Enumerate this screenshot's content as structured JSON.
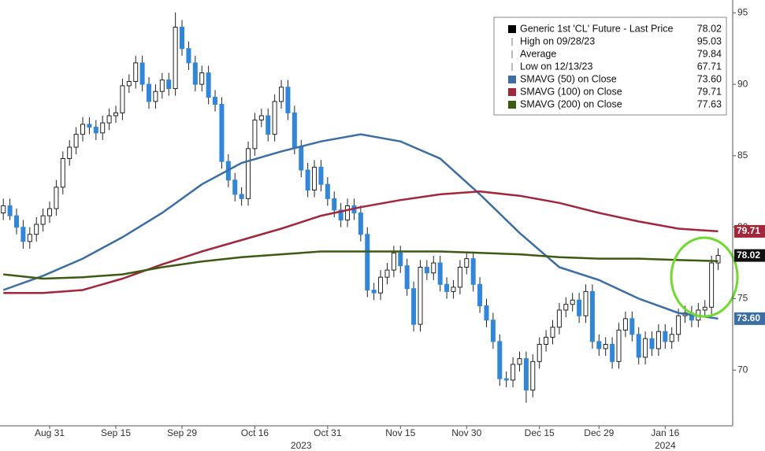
{
  "chart_data": {
    "type": "candlestick",
    "up_color": "#ffffff",
    "down_color": "#2e86de",
    "edge_color": "#222222",
    "xlim": [
      -0.5,
      110.2
    ],
    "ylim": [
      66.1,
      95.9
    ],
    "yticks": [
      70,
      75,
      80,
      85,
      90,
      95
    ],
    "xticks": [
      {
        "value": 7,
        "label": "Aug 31"
      },
      {
        "value": 17,
        "label": "Sep 15"
      },
      {
        "value": 27,
        "label": "Sep 29"
      },
      {
        "value": 38,
        "label": "Oct 16"
      },
      {
        "value": 49,
        "label": "Oct 31"
      },
      {
        "value": 60,
        "label": "Nov 15"
      },
      {
        "value": 70,
        "label": "Nov 30"
      },
      {
        "value": 81,
        "label": "Dec 15"
      },
      {
        "value": 90,
        "label": "Dec 29"
      },
      {
        "value": 100,
        "label": "Jan 16"
      }
    ],
    "year_labels": [
      {
        "value": 45,
        "label": "2023"
      },
      {
        "value": 100,
        "label": "2024"
      }
    ],
    "candles": {
      "open": [
        81.0,
        81.5,
        80.8,
        80.0,
        79.0,
        79.5,
        80.2,
        80.8,
        81.3,
        82.8,
        84.8,
        85.6,
        86.5,
        87.2,
        87.0,
        86.6,
        87.3,
        87.8,
        88.0,
        89.9,
        90.2,
        91.5,
        90.0,
        88.8,
        89.5,
        90.3,
        89.7,
        94.0,
        92.5,
        91.5,
        90.0,
        90.8,
        89.1,
        88.6,
        84.6,
        83.3,
        82.3,
        82.0,
        85.5,
        87.5,
        87.8,
        86.5,
        88.8,
        89.8,
        88.0,
        85.6,
        84.0,
        82.6,
        84.2,
        83.0,
        82.0,
        81.2,
        80.5,
        81.5,
        81.0,
        79.5,
        75.6,
        75.4,
        76.5,
        77.0,
        78.2,
        77.3,
        75.7,
        73.2,
        77.2,
        76.8,
        77.5,
        76.0,
        75.5,
        75.8,
        77.2,
        77.8,
        76.0,
        74.5,
        73.5,
        72.0,
        69.4,
        69.3,
        70.4,
        70.8,
        68.6,
        70.6,
        71.8,
        72.3,
        73.0,
        74.2,
        74.6,
        74.9,
        73.8,
        75.5,
        72.0,
        71.5,
        71.8,
        70.6,
        72.8,
        73.6,
        72.5,
        70.9,
        72.2,
        71.5,
        72.7,
        72.0,
        72.5,
        73.8,
        74.0,
        73.5,
        74.2,
        74.4,
        77.5
      ],
      "high": [
        82.0,
        82.0,
        81.3,
        80.5,
        80.0,
        80.7,
        81.3,
        81.8,
        83.3,
        85.3,
        86.1,
        87.0,
        87.7,
        87.7,
        87.5,
        87.8,
        88.3,
        88.5,
        90.4,
        90.7,
        92.0,
        92.0,
        90.5,
        90.0,
        90.8,
        90.8,
        95.03,
        94.5,
        93.0,
        92.0,
        91.3,
        91.3,
        89.6,
        89.1,
        85.1,
        83.8,
        82.8,
        86.0,
        88.0,
        88.3,
        88.3,
        89.3,
        90.3,
        90.3,
        88.5,
        86.1,
        84.5,
        84.7,
        84.7,
        83.5,
        82.5,
        81.7,
        82.0,
        82.0,
        81.5,
        80.0,
        76.1,
        77.0,
        77.5,
        78.7,
        78.7,
        77.8,
        76.2,
        77.7,
        77.7,
        78.0,
        78.0,
        76.5,
        76.3,
        77.7,
        78.3,
        78.3,
        76.5,
        75.0,
        74.0,
        72.5,
        69.9,
        70.9,
        71.3,
        71.3,
        71.1,
        72.3,
        72.8,
        73.5,
        74.7,
        75.1,
        75.4,
        75.4,
        76.0,
        76.0,
        72.5,
        72.3,
        72.3,
        73.3,
        74.1,
        74.1,
        73.0,
        72.7,
        72.7,
        73.2,
        73.2,
        73.0,
        74.3,
        74.5,
        74.5,
        74.7,
        74.9,
        78.0,
        78.52
      ],
      "low": [
        80.5,
        80.5,
        79.5,
        78.5,
        78.5,
        79.0,
        79.7,
        80.3,
        80.8,
        82.3,
        84.3,
        85.1,
        86.0,
        86.5,
        86.1,
        86.1,
        86.8,
        87.3,
        87.5,
        89.4,
        89.7,
        89.5,
        88.3,
        88.3,
        89.0,
        89.2,
        89.2,
        92.0,
        91.0,
        89.5,
        89.5,
        88.6,
        88.1,
        84.1,
        82.8,
        81.8,
        81.5,
        81.5,
        85.0,
        87.0,
        86.0,
        86.0,
        88.3,
        87.5,
        85.1,
        83.5,
        82.1,
        82.1,
        82.5,
        81.5,
        80.7,
        80.0,
        80.0,
        80.5,
        79.0,
        75.1,
        74.9,
        74.9,
        76.0,
        76.5,
        76.8,
        75.2,
        72.7,
        72.7,
        76.3,
        76.3,
        75.5,
        75.0,
        75.0,
        75.3,
        76.7,
        75.5,
        74.0,
        73.0,
        71.5,
        68.9,
        68.8,
        68.8,
        69.9,
        67.71,
        68.1,
        70.1,
        71.3,
        71.8,
        72.5,
        73.7,
        74.1,
        73.3,
        73.3,
        71.5,
        71.0,
        71.0,
        70.1,
        70.1,
        72.3,
        72.0,
        70.4,
        70.4,
        71.0,
        71.0,
        71.5,
        71.5,
        72.0,
        73.3,
        73.0,
        73.0,
        73.7,
        73.9,
        77.0
      ],
      "close": [
        81.5,
        80.8,
        80.0,
        79.0,
        79.5,
        80.2,
        80.8,
        81.3,
        82.8,
        84.8,
        85.6,
        86.5,
        87.2,
        87.0,
        86.6,
        87.3,
        87.8,
        88.0,
        89.9,
        90.2,
        91.5,
        90.0,
        88.8,
        89.5,
        90.3,
        89.7,
        94.0,
        92.5,
        91.5,
        90.0,
        90.8,
        89.1,
        88.6,
        84.6,
        83.3,
        82.3,
        82.0,
        85.5,
        87.5,
        87.8,
        86.5,
        88.8,
        89.8,
        88.0,
        85.6,
        84.0,
        82.6,
        84.2,
        83.0,
        82.0,
        81.2,
        80.5,
        81.5,
        81.0,
        79.5,
        75.6,
        75.4,
        76.5,
        77.0,
        78.2,
        77.3,
        75.7,
        73.2,
        77.2,
        76.8,
        77.5,
        76.0,
        75.5,
        75.8,
        77.2,
        77.8,
        76.0,
        74.5,
        73.5,
        72.0,
        69.4,
        69.3,
        70.4,
        70.8,
        68.6,
        70.6,
        71.8,
        72.3,
        73.0,
        74.2,
        74.6,
        74.9,
        73.8,
        75.5,
        72.0,
        71.5,
        71.8,
        70.6,
        72.8,
        73.6,
        72.5,
        70.9,
        72.2,
        71.5,
        72.7,
        72.0,
        72.5,
        73.8,
        74.0,
        73.5,
        74.2,
        74.4,
        77.5,
        78.02
      ]
    },
    "series": [
      {
        "name": "SMAVG (50)  on Close",
        "color": "#3a6ea5",
        "x": [
          0,
          6,
          12,
          18,
          24,
          30,
          36,
          42,
          48,
          54,
          60,
          66,
          72,
          78,
          84,
          90,
          96,
          102,
          108
        ],
        "values": [
          75.6,
          76.6,
          77.8,
          79.3,
          81.0,
          83.0,
          84.5,
          85.3,
          86.0,
          86.5,
          86.0,
          84.8,
          82.3,
          79.6,
          77.2,
          76.3,
          75.0,
          74.0,
          73.6
        ]
      },
      {
        "name": "SMAVG (100)  on Close",
        "color": "#a3263a",
        "x": [
          0,
          6,
          12,
          18,
          24,
          30,
          36,
          42,
          48,
          54,
          60,
          66,
          72,
          78,
          84,
          90,
          96,
          102,
          108
        ],
        "values": [
          75.4,
          75.4,
          75.6,
          76.4,
          77.4,
          78.3,
          79.1,
          79.9,
          80.8,
          81.4,
          81.9,
          82.3,
          82.5,
          82.2,
          81.7,
          81.0,
          80.4,
          79.9,
          79.71
        ]
      },
      {
        "name": "SMAVG (200)  on Close",
        "color": "#3d5a12",
        "x": [
          0,
          6,
          12,
          18,
          24,
          30,
          36,
          42,
          48,
          54,
          60,
          66,
          72,
          78,
          84,
          90,
          96,
          102,
          108
        ],
        "values": [
          76.7,
          76.4,
          76.5,
          76.7,
          77.2,
          77.6,
          77.9,
          78.1,
          78.3,
          78.3,
          78.3,
          78.3,
          78.2,
          78.1,
          77.9,
          77.8,
          77.8,
          77.7,
          77.63
        ]
      }
    ],
    "legend": [
      {
        "name": "Generic 1st 'CL' Future - Last Price",
        "value": "78.02"
      },
      {
        "name": "High on 09/28/23",
        "value": "95.03"
      },
      {
        "name": "Average",
        "value": "79.84"
      },
      {
        "name": "Low on 12/13/23",
        "value": "67.71"
      },
      {
        "name": "SMAVG (50)  on Close",
        "value": "73.60"
      },
      {
        "name": "SMAVG (100)  on Close",
        "value": "79.71"
      },
      {
        "name": "SMAVG (200)  on Close",
        "value": "77.63"
      }
    ]
  }
}
